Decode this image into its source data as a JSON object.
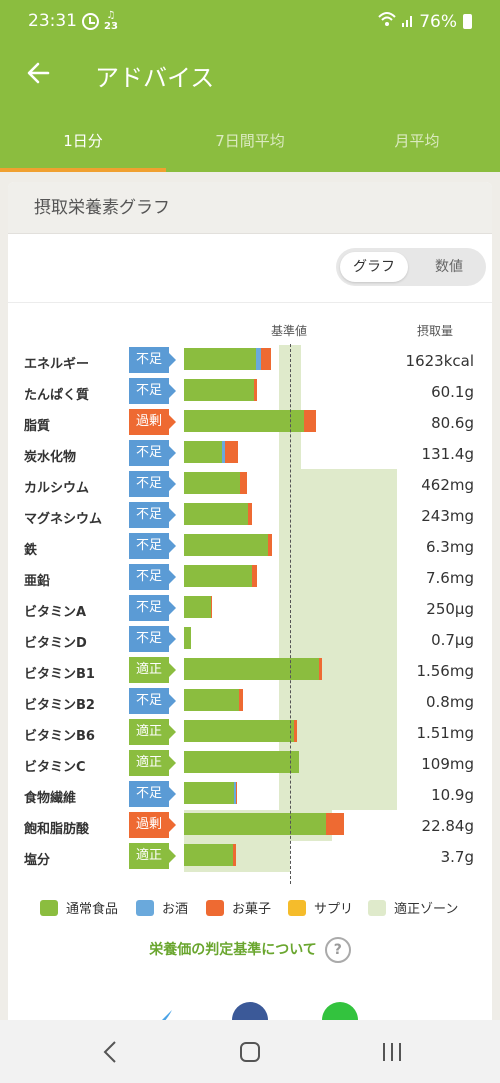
{
  "status": {
    "time": "23:31",
    "note_icon": "23",
    "battery": "76%"
  },
  "appbar": {
    "title": "アドバイス"
  },
  "tabs": [
    {
      "label": "1日分",
      "active": true
    },
    {
      "label": "7日間平均",
      "active": false
    },
    {
      "label": "月平均",
      "active": false
    }
  ],
  "card": {
    "title": "摂取栄養素グラフ"
  },
  "toggle": {
    "graph": "グラフ",
    "numbers": "数値"
  },
  "headers": {
    "standard": "基準値",
    "intake": "摂取量"
  },
  "colors": {
    "normal": "#8bbd3f",
    "alcohol": "#6aa9dc",
    "snack": "#ee6a32",
    "supplement": "#f5bc2b",
    "zone": "#dfeacb",
    "short": "#5b9bd5",
    "over": "#ee6a32",
    "ok": "#8bbd3f"
  },
  "chart_data": {
    "type": "bar",
    "categories": [
      "エネルギー",
      "たんぱく質",
      "脂質",
      "炭水化物",
      "カルシウム",
      "マグネシウム",
      "鉄",
      "亜鉛",
      "ビタミンA",
      "ビタミンD",
      "ビタミンB1",
      "ビタミンB2",
      "ビタミンB6",
      "ビタミンC",
      "食物繊維",
      "飽和脂肪酸",
      "塩分"
    ],
    "status": [
      "不足",
      "不足",
      "過剰",
      "不足",
      "不足",
      "不足",
      "不足",
      "不足",
      "不足",
      "不足",
      "適正",
      "不足",
      "適正",
      "適正",
      "不足",
      "過剰",
      "適正"
    ],
    "intake": [
      "1623kcal",
      "60.1g",
      "80.6g",
      "131.4g",
      "462mg",
      "243mg",
      "6.3mg",
      "7.6mg",
      "250μg",
      "0.7μg",
      "1.56mg",
      "0.8mg",
      "1.51mg",
      "109mg",
      "10.9g",
      "22.84g",
      "3.7g"
    ],
    "series": [
      {
        "name": "通常食品",
        "values": [
          72,
          70,
          120,
          38,
          56,
          64,
          84,
          68,
          27,
          7,
          135,
          55,
          110,
          115,
          50,
          142,
          49
        ]
      },
      {
        "name": "お酒",
        "values": [
          5,
          0,
          0,
          3,
          0,
          0,
          0,
          0,
          0,
          0,
          0,
          0,
          0,
          0,
          2,
          0,
          0
        ]
      },
      {
        "name": "お菓子",
        "values": [
          10,
          3,
          12,
          13,
          7,
          4,
          4,
          5,
          1,
          0,
          3,
          4,
          3,
          0,
          1,
          18,
          3
        ]
      },
      {
        "name": "サプリ",
        "values": [
          0,
          0,
          0,
          0,
          0,
          0,
          0,
          0,
          0,
          0,
          0,
          0,
          0,
          0,
          0,
          0,
          0
        ]
      }
    ],
    "zones": [
      [
        95,
        117
      ],
      [
        95,
        117
      ],
      [
        95,
        117
      ],
      [
        95,
        117
      ],
      [
        95,
        213
      ],
      [
        95,
        213
      ],
      [
        95,
        213
      ],
      [
        95,
        213
      ],
      [
        95,
        213
      ],
      [
        95,
        213
      ],
      [
        95,
        213
      ],
      [
        95,
        213
      ],
      [
        95,
        213
      ],
      [
        95,
        213
      ],
      [
        95,
        213
      ],
      [
        0,
        148
      ],
      [
        0,
        106
      ]
    ],
    "reference": 106,
    "legend": [
      "通常食品",
      "お酒",
      "お菓子",
      "サプリ",
      "適正ゾーン"
    ]
  },
  "link": {
    "text": "栄養価の判定基準について",
    "help": "?"
  }
}
